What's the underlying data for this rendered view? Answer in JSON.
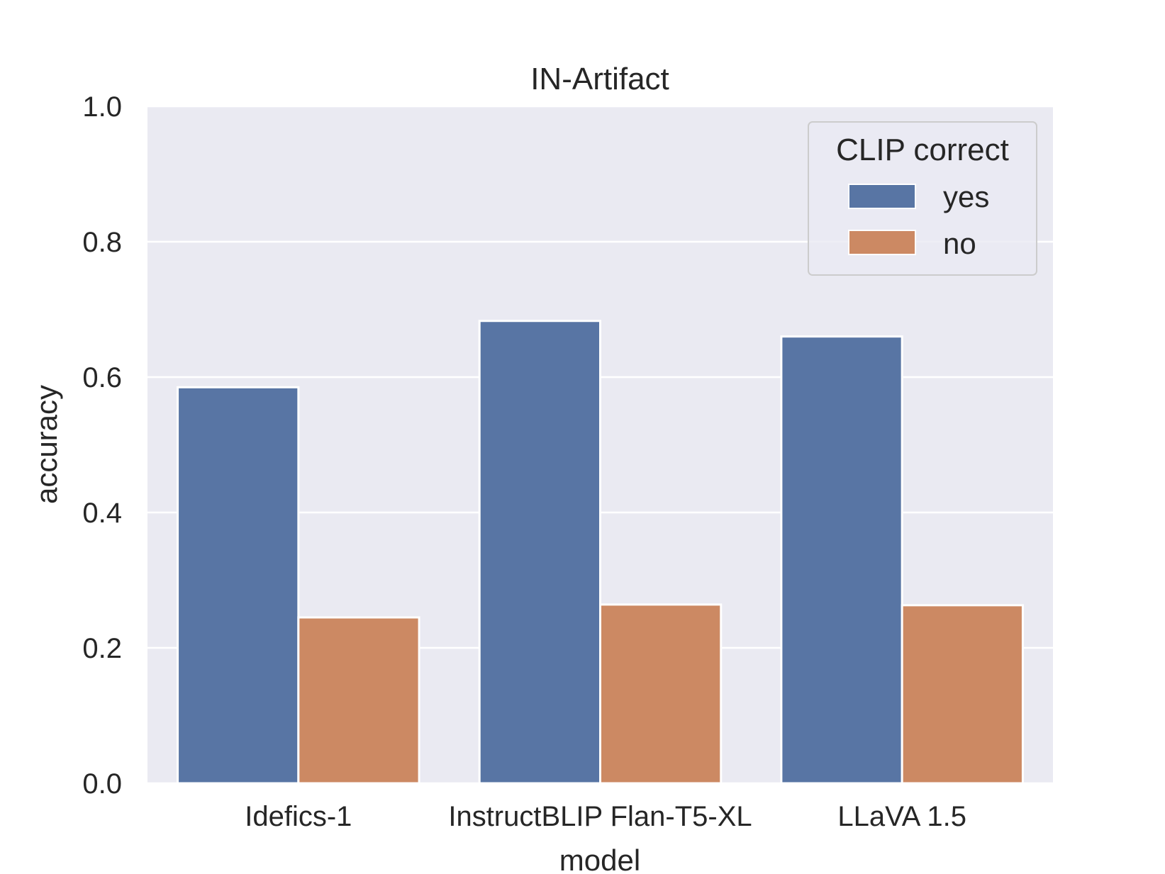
{
  "chart_data": {
    "type": "bar",
    "title": "IN-Artifact",
    "xlabel": "model",
    "ylabel": "accuracy",
    "categories": [
      "Idefics-1",
      "InstructBLIP Flan-T5-XL",
      "LLaVA 1.5"
    ],
    "series": [
      {
        "name": "yes",
        "color": "#5875a4",
        "values": [
          0.585,
          0.683,
          0.66
        ]
      },
      {
        "name": "no",
        "color": "#cc8963",
        "values": [
          0.245,
          0.264,
          0.263
        ]
      }
    ],
    "ylim": [
      0,
      1.0
    ],
    "yticks": [
      "0.0",
      "0.2",
      "0.4",
      "0.6",
      "0.8",
      "1.0"
    ],
    "grid": true,
    "legend": {
      "title": "CLIP correct",
      "position": "top-right"
    },
    "colors": {
      "plot_background": "#eaeaf2",
      "grid": "#ffffff"
    }
  }
}
